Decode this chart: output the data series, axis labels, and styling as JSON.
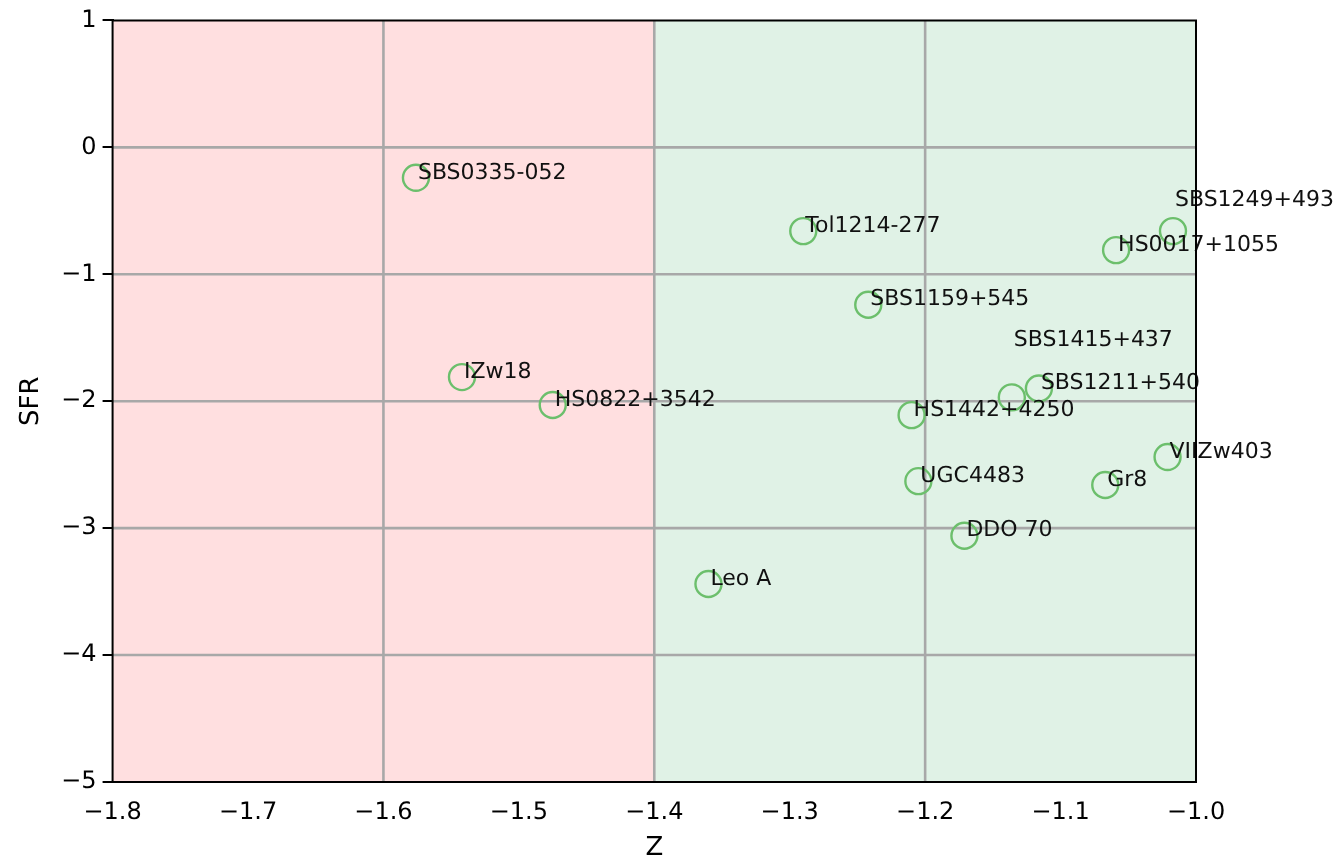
{
  "chart_data": {
    "type": "scatter",
    "xlabel": "Z",
    "ylabel": "SFR",
    "x": [
      -1.576,
      -1.542,
      -1.475,
      -1.29,
      -1.242,
      -1.059,
      -1.017,
      -1.116,
      -1.136,
      -1.21,
      -1.205,
      -1.067,
      -1.021,
      -1.171,
      -1.36
    ],
    "series": [
      {
        "color": "#6cbf6c",
        "values": [
          -0.24,
          -1.81,
          -2.03,
          -0.66,
          -1.24,
          -0.81,
          -0.66,
          -1.9,
          -1.97,
          -2.11,
          -2.63,
          -2.66,
          -2.44,
          -3.06,
          -3.44
        ],
        "value_labels": [
          "SBS0335-052",
          "IZw18",
          "HS0822+3542",
          "Tol1214-277",
          "SBS1159+545",
          "HS0017+1055",
          "SBS1249+493",
          "SBS1211+540",
          "SBS1415+437",
          "HS1442+4250",
          "UGC4483",
          "Gr8",
          "VIIZw403",
          "DDO 70",
          "Leo A"
        ]
      }
    ],
    "marker": "circle",
    "legend": false,
    "grid": false,
    "xlim": [
      -1.8,
      -1.0
    ],
    "xticks": [
      {
        "value": -1.8,
        "label": "−1.8"
      },
      {
        "value": -1.7,
        "label": "−1.7"
      },
      {
        "value": -1.6,
        "label": "−1.6"
      },
      {
        "value": -1.5,
        "label": "−1.5"
      },
      {
        "value": -1.4,
        "label": "−1.4"
      },
      {
        "value": -1.3,
        "label": "−1.3"
      },
      {
        "value": -1.2,
        "label": "−1.2"
      },
      {
        "value": -1.1,
        "label": "−1.1"
      },
      {
        "value": -1.0,
        "label": "−1.0"
      }
    ],
    "ylim": [
      -5,
      1
    ],
    "yticks": [
      {
        "value": -5,
        "label": "−5"
      },
      {
        "value": -4,
        "label": "−4"
      },
      {
        "value": -3,
        "label": "−3"
      },
      {
        "value": -2,
        "label": "−2"
      },
      {
        "value": -1,
        "label": "−1"
      },
      0,
      1
    ],
    "bands": [
      {
        "axis": "x",
        "from": -1.8,
        "to": -1.4,
        "color": "#ffdfe0"
      },
      {
        "axis": "x",
        "from": -1.4,
        "to": -1.0,
        "color": "#e0f2e6"
      }
    ],
    "ref_lines": [
      {
        "axis": "x",
        "value": -1.6,
        "color": "#a8a8a8"
      },
      {
        "axis": "x",
        "value": -1.4,
        "color": "#a8a8a8"
      },
      {
        "axis": "x",
        "value": -1.2,
        "color": "#a8a8a8"
      },
      {
        "axis": "y",
        "value": 0,
        "color": "#a8a8a8"
      },
      {
        "axis": "y",
        "value": -1,
        "color": "#a8a8a8"
      },
      {
        "axis": "y",
        "value": -2,
        "color": "#a8a8a8"
      },
      {
        "axis": "y",
        "value": -3,
        "color": "#a8a8a8"
      },
      {
        "axis": "y",
        "value": -4,
        "color": "#a8a8a8"
      }
    ]
  }
}
